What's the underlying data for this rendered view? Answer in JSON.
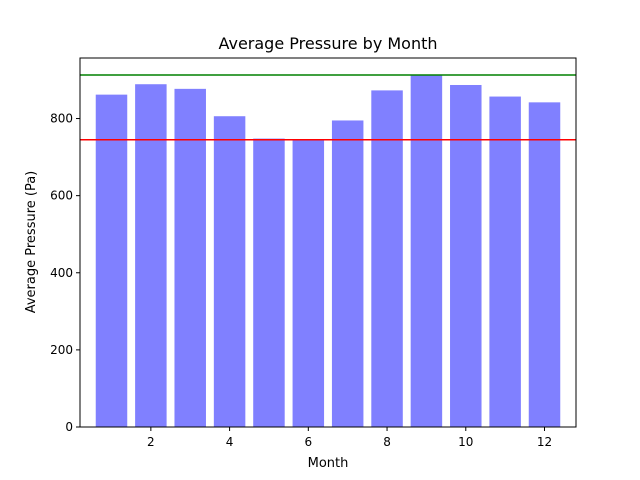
{
  "chart_data": {
    "type": "bar",
    "title": "Average Pressure by Month",
    "xlabel": "Month",
    "ylabel": "Average Pressure (Pa)",
    "x": [
      1,
      2,
      3,
      4,
      5,
      6,
      7,
      8,
      9,
      10,
      11,
      12
    ],
    "values": [
      862,
      889,
      877,
      806,
      748,
      745,
      795,
      873,
      913,
      887,
      857,
      842
    ],
    "xlim": [
      0.2,
      12.8
    ],
    "ylim": [
      0,
      957
    ],
    "xticks": [
      2,
      4,
      6,
      8,
      10,
      12
    ],
    "xtick_labels": [
      "2",
      "4",
      "6",
      "8",
      "10",
      "12"
    ],
    "yticks": [
      0,
      200,
      400,
      600,
      800
    ],
    "ytick_labels": [
      "0",
      "200",
      "400",
      "600",
      "800"
    ],
    "bar_color": "#8080ff",
    "reference_lines": [
      {
        "value": 913,
        "color": "#008000"
      },
      {
        "value": 745,
        "color": "#ff0000"
      }
    ],
    "grid": false,
    "legend": "none"
  }
}
